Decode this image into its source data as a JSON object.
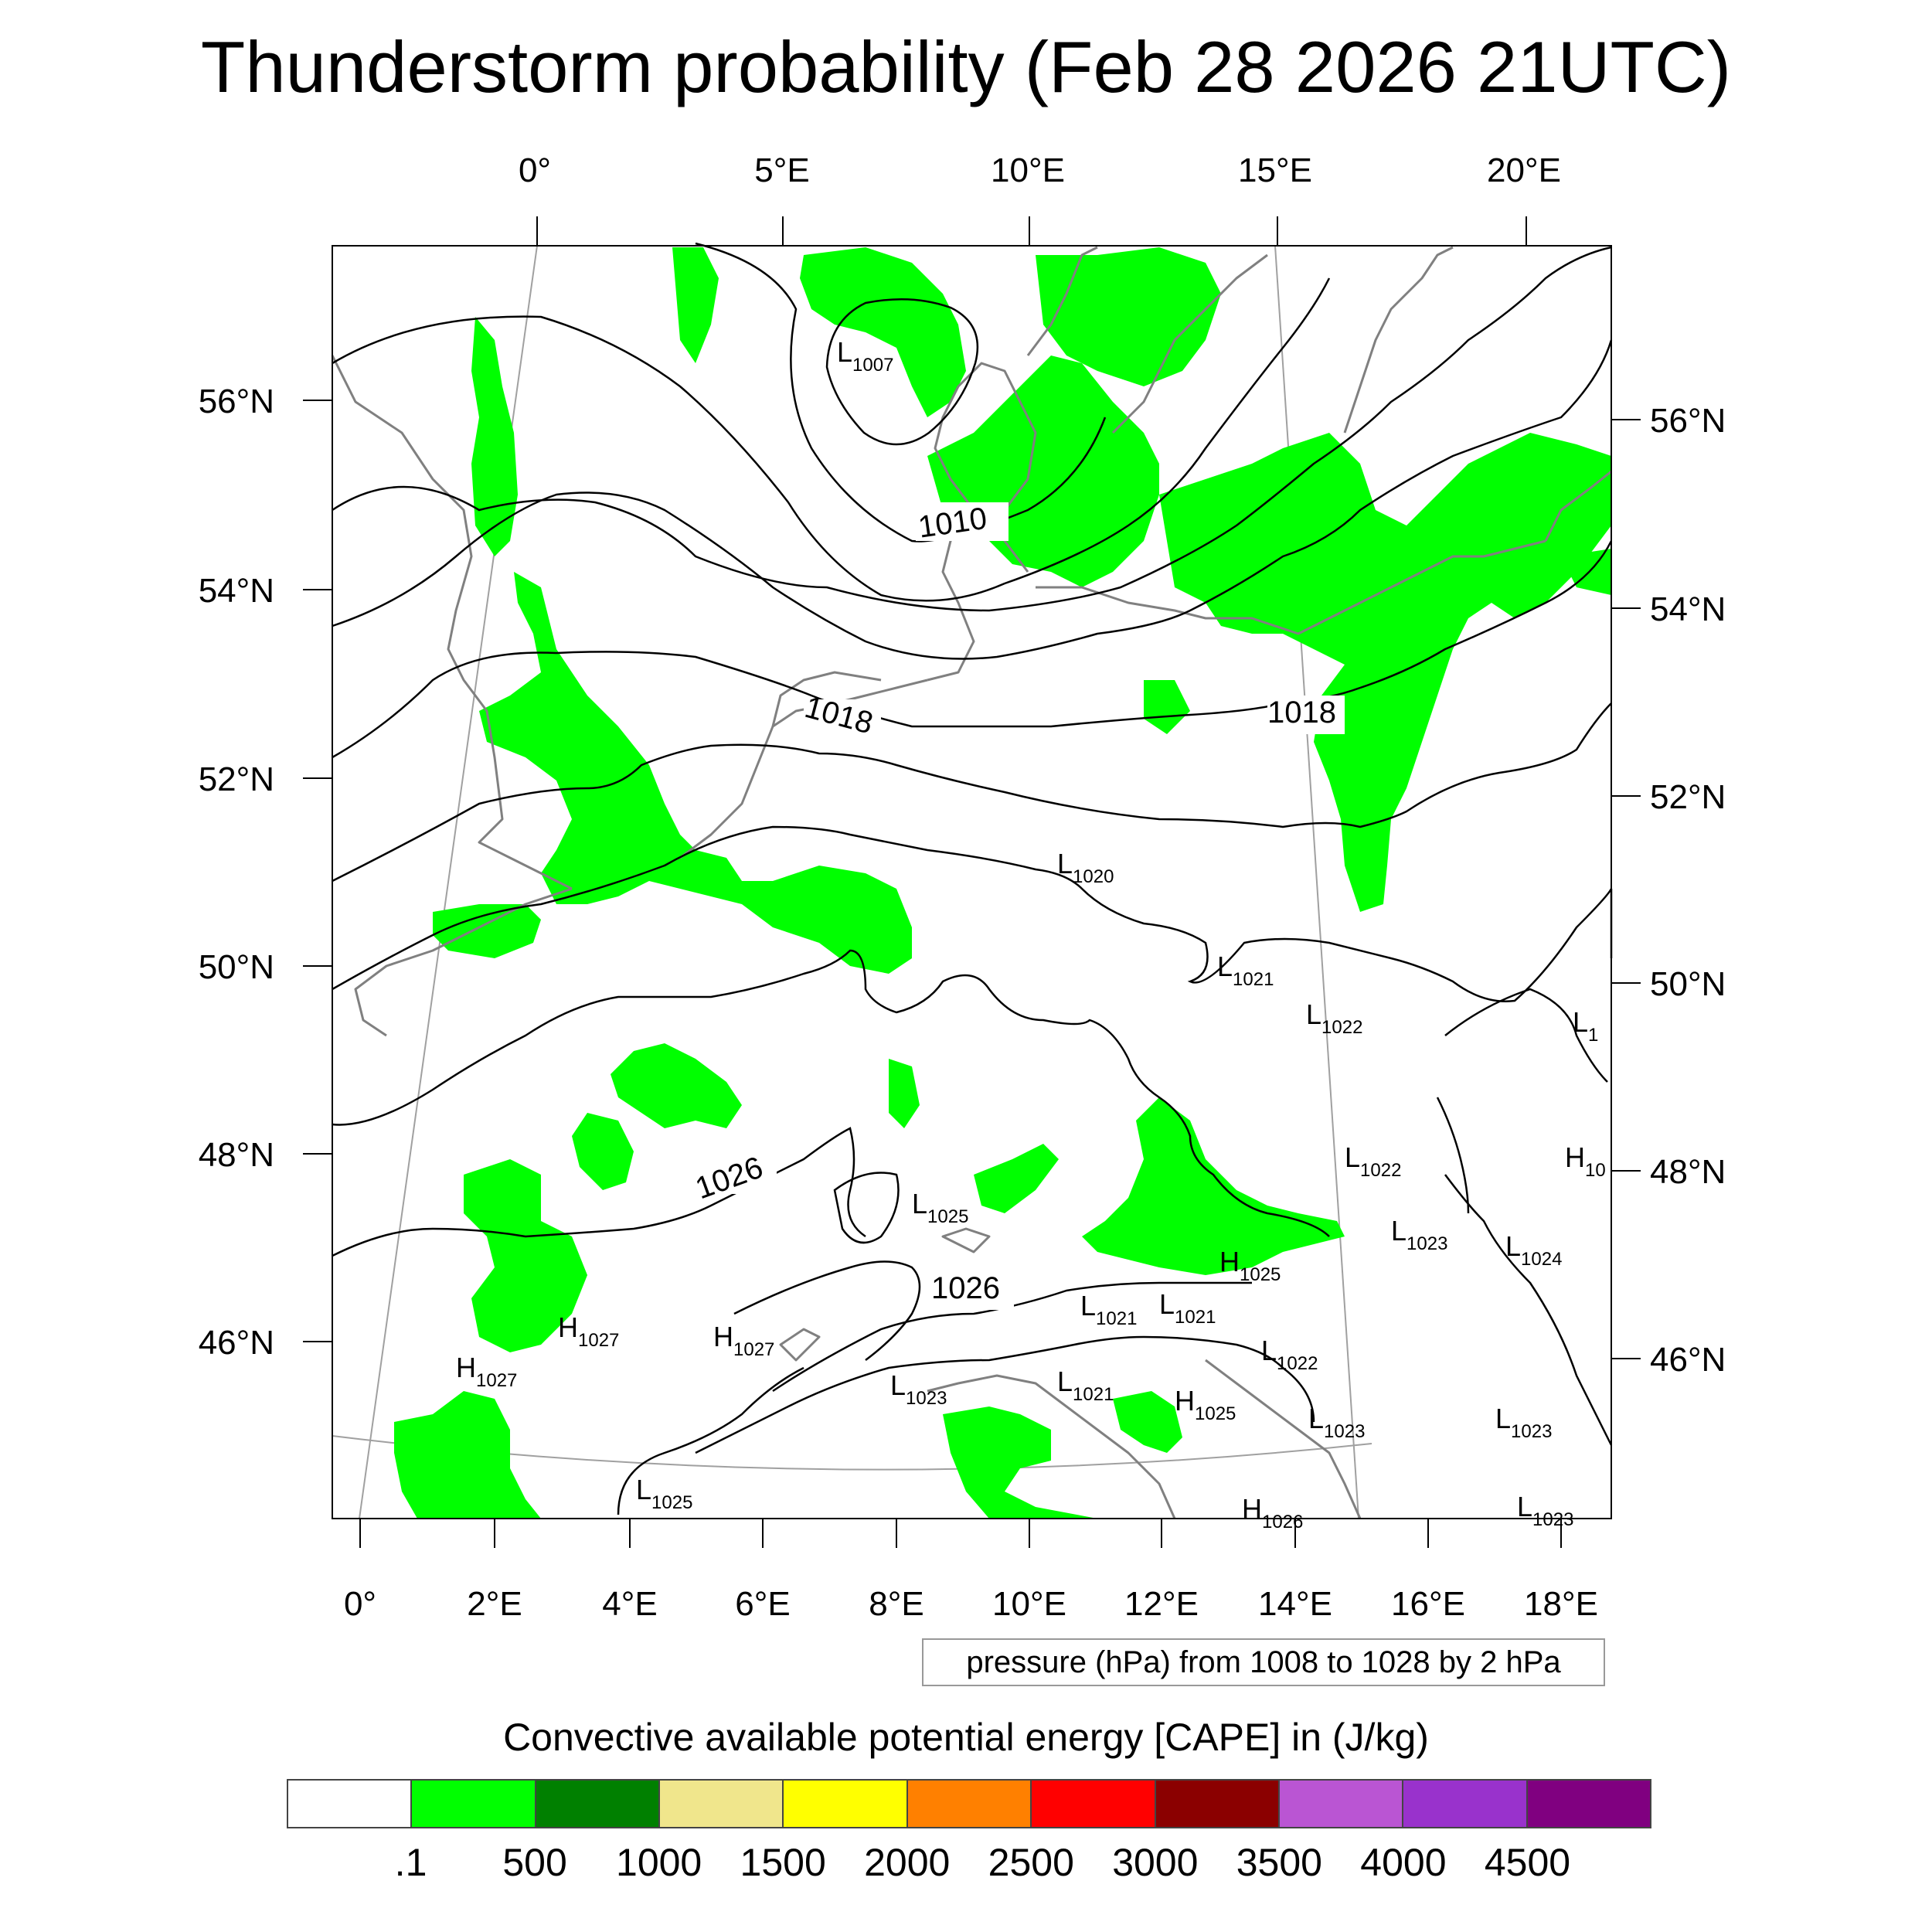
{
  "title": "Thunderstorm probability (Feb 28 2026 21UTC)",
  "map": {
    "top_lon_labels": [
      "0°",
      "5°E",
      "10°E",
      "15°E",
      "20°E"
    ],
    "bottom_lon_labels": [
      "0°",
      "2°E",
      "4°E",
      "6°E",
      "8°E",
      "10°E",
      "12°E",
      "14°E",
      "16°E",
      "18°E"
    ],
    "left_lat_labels": [
      "56°N",
      "54°N",
      "52°N",
      "50°N",
      "48°N",
      "46°N"
    ],
    "right_lat_labels": [
      "56°N",
      "54°N",
      "52°N",
      "50°N",
      "48°N",
      "46°N"
    ],
    "isobar_labels": [
      "1010",
      "1018",
      "1018",
      "1026",
      "1026"
    ],
    "pressure_centers": [
      {
        "type": "L",
        "value": "1007"
      },
      {
        "type": "L",
        "value": "1020"
      },
      {
        "type": "L",
        "value": "1021"
      },
      {
        "type": "L",
        "value": "1022"
      },
      {
        "type": "L",
        "value": "1022"
      },
      {
        "type": "L",
        "value": "1025"
      },
      {
        "type": "H",
        "value": "1025"
      },
      {
        "type": "L",
        "value": "1023"
      },
      {
        "type": "L",
        "value": "1024"
      },
      {
        "type": "L",
        "value": "1021"
      },
      {
        "type": "L",
        "value": "1021"
      },
      {
        "type": "H",
        "value": "1027"
      },
      {
        "type": "H",
        "value": "1027"
      },
      {
        "type": "H",
        "value": "1027"
      },
      {
        "type": "L",
        "value": "1022"
      },
      {
        "type": "L",
        "value": "1023"
      },
      {
        "type": "L",
        "value": "1021"
      },
      {
        "type": "H",
        "value": "1025"
      },
      {
        "type": "L",
        "value": "1023"
      },
      {
        "type": "L",
        "value": "1023"
      },
      {
        "type": "L",
        "value": "1025"
      },
      {
        "type": "H",
        "value": "1026"
      },
      {
        "type": "L",
        "value": "1023"
      },
      {
        "type": "L",
        "value": "1"
      },
      {
        "type": "H",
        "value": "10"
      }
    ]
  },
  "contour_note": "pressure (hPa) from 1008 to 1028 by 2 hPa",
  "colorbar": {
    "title": "Convective available potential energy [CAPE] in (J/kg)",
    "colors": [
      "#ffffff",
      "#00ff00",
      "#008000",
      "#f0e68c",
      "#ffff00",
      "#ff8000",
      "#ff0000",
      "#8b0000",
      "#ba55d3",
      "#9932cc",
      "#800080"
    ],
    "labels": [
      ".1",
      "500",
      "1000",
      "1500",
      "2000",
      "2500",
      "3000",
      "3500",
      "4000",
      "4500"
    ]
  },
  "colors": {
    "cape_green": "#00ff00",
    "isobar": "#000000",
    "coast": "#808080",
    "grid": "#a0a0a0"
  }
}
